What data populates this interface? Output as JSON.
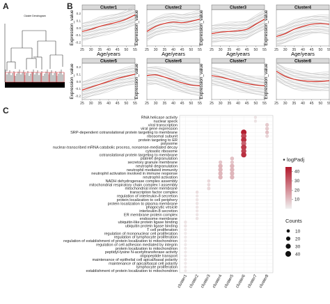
{
  "panels": {
    "a": {
      "letter": "A",
      "title": "Cluster Dendrogram"
    },
    "b": {
      "letter": "B"
    },
    "c": {
      "letter": "C"
    }
  },
  "panel_b": {
    "type": "line",
    "ylabel": "Expression_value",
    "xlabel": "Age/years",
    "x_ticks": [
      25,
      30,
      35,
      40,
      45,
      50,
      55
    ],
    "y_ticks": [
      "-0.2",
      "-0.1",
      "0.0",
      "0.1",
      "0.2"
    ],
    "line_color": "#d62a20",
    "band_color": "#c8c8c8",
    "clusters": [
      {
        "name": "Cluster1",
        "x": [
          25,
          30,
          35,
          40,
          45,
          50,
          55
        ],
        "y": [
          -0.05,
          -0.02,
          0.02,
          0.05,
          0.08,
          0.12,
          0.18
        ]
      },
      {
        "name": "Cluster2",
        "x": [
          25,
          30,
          35,
          40,
          45,
          50,
          55
        ],
        "y": [
          -0.05,
          0.02,
          0.06,
          0.08,
          0.07,
          0.09,
          0.12
        ]
      },
      {
        "name": "Cluster3",
        "x": [
          25,
          30,
          35,
          40,
          45,
          50,
          55
        ],
        "y": [
          -0.08,
          -0.06,
          -0.05,
          -0.04,
          -0.02,
          0.05,
          0.12
        ]
      },
      {
        "name": "Cluster4",
        "x": [
          25,
          30,
          35,
          40,
          45,
          50,
          55
        ],
        "y": [
          -0.12,
          -0.08,
          -0.02,
          0.02,
          0.05,
          0.06,
          0.05
        ]
      },
      {
        "name": "Cluster5",
        "x": [
          25,
          30,
          35,
          40,
          45,
          50,
          55
        ],
        "y": [
          -0.12,
          -0.08,
          -0.04,
          0.0,
          0.04,
          0.07,
          0.1
        ]
      },
      {
        "name": "Cluster6",
        "x": [
          25,
          30,
          35,
          40,
          45,
          50,
          55
        ],
        "y": [
          0.08,
          0.09,
          0.06,
          0.02,
          -0.02,
          -0.05,
          -0.06
        ]
      },
      {
        "name": "Cluster7",
        "x": [
          25,
          30,
          35,
          40,
          45,
          50,
          55
        ],
        "y": [
          0.08,
          0.06,
          0.03,
          0.0,
          -0.03,
          -0.05,
          -0.06
        ]
      },
      {
        "name": "Cluster8",
        "x": [
          25,
          30,
          35,
          40,
          45,
          50,
          55
        ],
        "y": [
          0.14,
          0.07,
          0.03,
          0.01,
          0.0,
          0.0,
          0.01
        ]
      }
    ]
  },
  "chart_data": {
    "type": "scatter",
    "x_categories": [
      "cluster1",
      "cluster2",
      "cluster3",
      "cluster4",
      "cluster5",
      "cluster6",
      "cluster7",
      "cluster8"
    ],
    "y_terms": [
      "RNA helicase activity",
      "nuclear speck",
      "viral transcription",
      "viral gene expression",
      "SRP-dependent cotranslational protein targeting to membrane",
      "ribosomal subunit",
      "protein targeting to ER",
      "polysome",
      "nuclear-transcribed mRNA catabolic process, nonsense-mediated decay",
      "cytosolic ribosome",
      "cotranslational protein targeting to membrane",
      "platelet degranulation",
      "secretory granule membrane",
      "neutrophil degranulation",
      "neutrophil mediated immunity",
      "neutrophil activation involved in immune response",
      "neutrophil activation",
      "NADH dehydrogenase complex assembly",
      "mitochondrial respiratory chain complex I assembly",
      "mitochondrial inner membrane",
      "transcription factor complex",
      "regulation of interleukin-8 secretion",
      "protein localization to cell periphery",
      "protein localization to plasma membrane",
      "phagocytic vesicle",
      "interleukin-8 secretion",
      "ER membrane protein complex",
      "endosome membrane",
      "ubiquitin-like protein ligase binding",
      "ubiquitin protein ligase binding",
      "T cell proliferation",
      "regulation of mononuclear cell proliferation",
      "regulation of lymphocyte proliferation",
      "regulation of establishment of protein localization to mitochondrion",
      "regulation of cell adhesion mediated by integrin",
      "protein localization to mitochondrion",
      "peptidyl-lysine N-acetyltransferase activity",
      "oligopeptide transport",
      "maintenance of epithelial cell apical/basal polarity",
      "maintenance of apical/basal cell polarity",
      "lymphocyte proliferation",
      "establishment of protein localization to mitochondrion"
    ],
    "points": [
      {
        "x": "cluster7",
        "y": "RNA helicase activity",
        "count": 8,
        "logPadj": 3
      },
      {
        "x": "cluster7",
        "y": "nuclear speck",
        "count": 8,
        "logPadj": 3
      },
      {
        "x": "cluster8",
        "y": "viral transcription",
        "count": 14,
        "logPadj": 8
      },
      {
        "x": "cluster8",
        "y": "viral gene expression",
        "count": 14,
        "logPadj": 8
      },
      {
        "x": "cluster6",
        "y": "SRP-dependent cotranslational protein targeting to membrane",
        "count": 38,
        "logPadj": 44
      },
      {
        "x": "cluster8",
        "y": "SRP-dependent cotranslational protein targeting to membrane",
        "count": 14,
        "logPadj": 10
      },
      {
        "x": "cluster6",
        "y": "ribosomal subunit",
        "count": 36,
        "logPadj": 35
      },
      {
        "x": "cluster8",
        "y": "ribosomal subunit",
        "count": 12,
        "logPadj": 6
      },
      {
        "x": "cluster6",
        "y": "protein targeting to ER",
        "count": 36,
        "logPadj": 40
      },
      {
        "x": "cluster6",
        "y": "polysome",
        "count": 30,
        "logPadj": 30
      },
      {
        "x": "cluster6",
        "y": "nuclear-transcribed mRNA catabolic process, nonsense-mediated decay",
        "count": 36,
        "logPadj": 38
      },
      {
        "x": "cluster6",
        "y": "cytosolic ribosome",
        "count": 32,
        "logPadj": 36
      },
      {
        "x": "cluster6",
        "y": "cotranslational protein targeting to membrane",
        "count": 34,
        "logPadj": 40
      },
      {
        "x": "cluster5",
        "y": "platelet degranulation",
        "count": 16,
        "logPadj": 10
      },
      {
        "x": "cluster4",
        "y": "secretory granule membrane",
        "count": 14,
        "logPadj": 9
      },
      {
        "x": "cluster5",
        "y": "secretory granule membrane",
        "count": 14,
        "logPadj": 9
      },
      {
        "x": "cluster4",
        "y": "neutrophil degranulation",
        "count": 22,
        "logPadj": 12
      },
      {
        "x": "cluster5",
        "y": "neutrophil degranulation",
        "count": 22,
        "logPadj": 12
      },
      {
        "x": "cluster4",
        "y": "neutrophil mediated immunity",
        "count": 22,
        "logPadj": 12
      },
      {
        "x": "cluster5",
        "y": "neutrophil mediated immunity",
        "count": 22,
        "logPadj": 12
      },
      {
        "x": "cluster4",
        "y": "neutrophil activation involved in immune response",
        "count": 22,
        "logPadj": 12
      },
      {
        "x": "cluster5",
        "y": "neutrophil activation involved in immune response",
        "count": 22,
        "logPadj": 12
      },
      {
        "x": "cluster4",
        "y": "neutrophil activation",
        "count": 22,
        "logPadj": 12
      },
      {
        "x": "cluster5",
        "y": "neutrophil activation",
        "count": 22,
        "logPadj": 12
      },
      {
        "x": "cluster3",
        "y": "NADH dehydrogenase complex assembly",
        "count": 10,
        "logPadj": 5
      },
      {
        "x": "cluster3",
        "y": "mitochondrial respiratory chain complex I assembly",
        "count": 10,
        "logPadj": 5
      },
      {
        "x": "cluster3",
        "y": "mitochondrial inner membrane",
        "count": 12,
        "logPadj": 5
      },
      {
        "x": "cluster2",
        "y": "transcription factor complex",
        "count": 9,
        "logPadj": 4
      },
      {
        "x": "cluster2",
        "y": "regulation of interleukin-8 secretion",
        "count": 7,
        "logPadj": 3
      },
      {
        "x": "cluster2",
        "y": "protein localization to cell periphery",
        "count": 9,
        "logPadj": 3
      },
      {
        "x": "cluster2",
        "y": "protein localization to plasma membrane",
        "count": 9,
        "logPadj": 3
      },
      {
        "x": "cluster2",
        "y": "phagocytic vesicle",
        "count": 8,
        "logPadj": 3
      },
      {
        "x": "cluster2",
        "y": "interleukin-8 secretion",
        "count": 7,
        "logPadj": 3
      },
      {
        "x": "cluster2",
        "y": "ER membrane protein complex",
        "count": 7,
        "logPadj": 3
      },
      {
        "x": "cluster2",
        "y": "endosome membrane",
        "count": 9,
        "logPadj": 3
      },
      {
        "x": "cluster1",
        "y": "ubiquitin-like protein ligase binding",
        "count": 9,
        "logPadj": 3
      },
      {
        "x": "cluster1",
        "y": "ubiquitin protein ligase binding",
        "count": 9,
        "logPadj": 3
      },
      {
        "x": "cluster1",
        "y": "T cell proliferation",
        "count": 7,
        "logPadj": 2
      },
      {
        "x": "cluster1",
        "y": "regulation of mononuclear cell proliferation",
        "count": 7,
        "logPadj": 2
      },
      {
        "x": "cluster1",
        "y": "regulation of lymphocyte proliferation",
        "count": 7,
        "logPadj": 2
      },
      {
        "x": "cluster1",
        "y": "regulation of establishment of protein localization to mitochondrion",
        "count": 7,
        "logPadj": 2
      },
      {
        "x": "cluster1",
        "y": "regulation of cell adhesion mediated by integrin",
        "count": 7,
        "logPadj": 2
      },
      {
        "x": "cluster1",
        "y": "protein localization to mitochondrion",
        "count": 7,
        "logPadj": 2
      },
      {
        "x": "cluster1",
        "y": "peptidyl-lysine N-acetyltransferase activity",
        "count": 7,
        "logPadj": 2
      },
      {
        "x": "cluster1",
        "y": "oligopeptide transport",
        "count": 7,
        "logPadj": 2
      },
      {
        "x": "cluster1",
        "y": "maintenance of epithelial cell apical/basal polarity",
        "count": 7,
        "logPadj": 2
      },
      {
        "x": "cluster1",
        "y": "maintenance of apical/basal cell polarity",
        "count": 7,
        "logPadj": 2
      },
      {
        "x": "cluster1",
        "y": "lymphocyte proliferation",
        "count": 7,
        "logPadj": 2
      },
      {
        "x": "cluster1",
        "y": "establishment of protein localization to mitochondrion",
        "count": 7,
        "logPadj": 2
      }
    ],
    "legend_color": {
      "title": "logPadj",
      "ticks": [
        10,
        20,
        30,
        40
      ],
      "low": "#f0f0f0",
      "high": "#b2182b",
      "range": [
        0,
        45
      ]
    },
    "legend_size": {
      "title": "Counts",
      "ticks": [
        10,
        20,
        30,
        40
      ]
    }
  }
}
